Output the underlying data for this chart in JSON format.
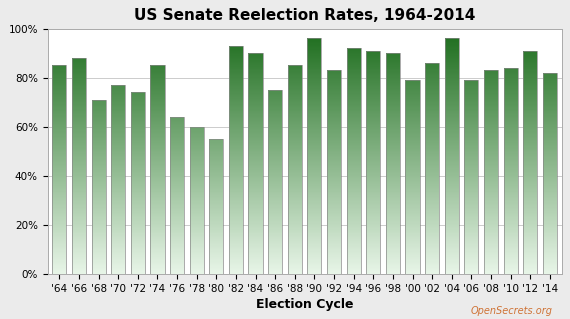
{
  "title": "US Senate Reelection Rates, 1964-2014",
  "xlabel": "Election Cycle",
  "categories": [
    "'64",
    "'66",
    "'68",
    "'70",
    "'72",
    "'74",
    "'76",
    "'78",
    "'80",
    "'82",
    "'84",
    "'86",
    "'88",
    "'90",
    "'92",
    "'94",
    "'96",
    "'98",
    "'00",
    "'02",
    "'04",
    "'06",
    "'08",
    "'10",
    "'12",
    "'14"
  ],
  "values": [
    85,
    88,
    71,
    77,
    74,
    85,
    64,
    60,
    55,
    93,
    90,
    75,
    85,
    96,
    83,
    92,
    91,
    90,
    79,
    86,
    96,
    79,
    83,
    84,
    91,
    82
  ],
  "ylim": [
    0,
    100
  ],
  "yticks": [
    0,
    20,
    40,
    60,
    80,
    100
  ],
  "ytick_labels": [
    "0%",
    "20%",
    "40%",
    "60%",
    "80%",
    "100%"
  ],
  "bar_color_top": "#1a6b1a",
  "bar_color_bottom": "#e8f5e8",
  "background_color": "#ebebeb",
  "plot_bg_color": "#ffffff",
  "grid_color": "#cccccc",
  "watermark": "OpenSecrets.org",
  "title_fontsize": 11,
  "axis_label_fontsize": 9,
  "tick_fontsize": 7.5,
  "bar_edge_color": "#888888",
  "bar_width": 0.72
}
